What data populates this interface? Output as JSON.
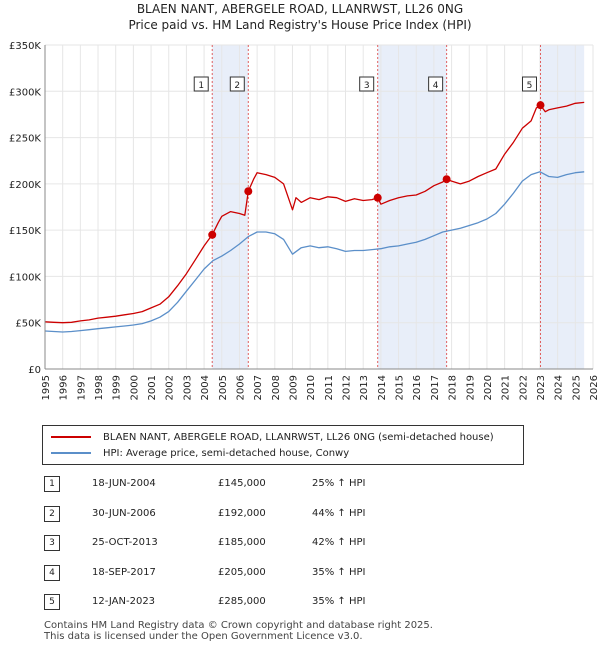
{
  "title_line1": "BLAEN NANT, ABERGELE ROAD, LLANRWST, LL26 0NG",
  "title_line2": "Price paid vs. HM Land Registry's House Price Index (HPI)",
  "chart_data": {
    "type": "line",
    "xlim": [
      1995,
      2026
    ],
    "ylim": [
      0,
      350000
    ],
    "x_ticks": [
      1995,
      1996,
      1997,
      1998,
      1999,
      2000,
      2001,
      2002,
      2003,
      2004,
      2005,
      2006,
      2007,
      2008,
      2009,
      2010,
      2011,
      2012,
      2013,
      2014,
      2015,
      2016,
      2017,
      2018,
      2019,
      2020,
      2021,
      2022,
      2023,
      2024,
      2025,
      2026
    ],
    "y_ticks": [
      {
        "value": 0,
        "label": "£0"
      },
      {
        "value": 50000,
        "label": "£50K"
      },
      {
        "value": 100000,
        "label": "£100K"
      },
      {
        "value": 150000,
        "label": "£150K"
      },
      {
        "value": 200000,
        "label": "£200K"
      },
      {
        "value": 250000,
        "label": "£250K"
      },
      {
        "value": 300000,
        "label": "£300K"
      },
      {
        "value": 350000,
        "label": "£350K"
      }
    ],
    "series": [
      {
        "name": "BLAEN NANT, ABERGELE ROAD, LLANRWST, LL26 0NG (semi-detached house)",
        "color": "#cc0000",
        "x": [
          1995,
          1995.5,
          1996,
          1996.5,
          1997,
          1997.5,
          1998,
          1998.5,
          1999,
          1999.5,
          2000,
          2000.5,
          2001,
          2001.5,
          2002,
          2002.5,
          2003,
          2003.5,
          2004,
          2004.46,
          2004.8,
          2005,
          2005.5,
          2006,
          2006.3,
          2006.5,
          2006.8,
          2007,
          2007.5,
          2008,
          2008.5,
          2009,
          2009.2,
          2009.5,
          2010,
          2010.5,
          2011,
          2011.5,
          2012,
          2012.5,
          2013,
          2013.5,
          2013.82,
          2014,
          2014.5,
          2015,
          2015.5,
          2016,
          2016.5,
          2017,
          2017.5,
          2017.72,
          2018,
          2018.5,
          2019,
          2019.5,
          2020,
          2020.5,
          2021,
          2021.5,
          2022,
          2022.5,
          2022.8,
          2023.03,
          2023.3,
          2023.5,
          2024,
          2024.5,
          2025,
          2025.5
        ],
        "y": [
          51000,
          50500,
          50000,
          50500,
          52000,
          53000,
          55000,
          56000,
          57000,
          58500,
          60000,
          62000,
          66000,
          70000,
          78000,
          90000,
          103000,
          118000,
          133000,
          145000,
          158000,
          165000,
          170000,
          168000,
          166000,
          192000,
          205000,
          212000,
          210000,
          207000,
          200000,
          172000,
          185000,
          180000,
          185000,
          183000,
          186000,
          185000,
          181000,
          184000,
          182000,
          183000,
          185000,
          178000,
          182000,
          185000,
          187000,
          188000,
          192000,
          198000,
          202000,
          205000,
          203000,
          200000,
          203000,
          208000,
          212000,
          216000,
          232000,
          245000,
          260000,
          268000,
          282000,
          285000,
          278000,
          280000,
          282000,
          284000,
          287000,
          288000
        ]
      },
      {
        "name": "HPI: Average price, semi-detached house, Conwy",
        "color": "#5b8fc9",
        "x": [
          1995,
          1995.5,
          1996,
          1996.5,
          1997,
          1997.5,
          1998,
          1998.5,
          1999,
          1999.5,
          2000,
          2000.5,
          2001,
          2001.5,
          2002,
          2002.5,
          2003,
          2003.5,
          2004,
          2004.5,
          2005,
          2005.5,
          2006,
          2006.5,
          2007,
          2007.5,
          2008,
          2008.5,
          2009,
          2009.5,
          2010,
          2010.5,
          2011,
          2011.5,
          2012,
          2012.5,
          2013,
          2013.5,
          2014,
          2014.5,
          2015,
          2015.5,
          2016,
          2016.5,
          2017,
          2017.5,
          2018,
          2018.5,
          2019,
          2019.5,
          2020,
          2020.5,
          2021,
          2021.5,
          2022,
          2022.5,
          2023,
          2023.5,
          2024,
          2024.5,
          2025,
          2025.5
        ],
        "y": [
          41000,
          40500,
          40000,
          40500,
          41500,
          42500,
          43500,
          44500,
          45500,
          46500,
          47500,
          49000,
          52000,
          56000,
          62000,
          72000,
          84000,
          96000,
          108000,
          117000,
          122000,
          128000,
          135000,
          143000,
          148000,
          148000,
          146000,
          140000,
          124000,
          131000,
          133000,
          131000,
          132000,
          130000,
          127000,
          128000,
          128000,
          129000,
          130000,
          132000,
          133000,
          135000,
          137000,
          140000,
          144000,
          148000,
          150000,
          152000,
          155000,
          158000,
          162000,
          168000,
          178000,
          190000,
          203000,
          210000,
          213000,
          208000,
          207000,
          210000,
          212000,
          213000
        ]
      }
    ],
    "sales": [
      {
        "id": "1",
        "x": 2004.46,
        "price": 145000,
        "date": "18-JUN-2004",
        "price_label": "£145,000",
        "hpi": "25% ↑ HPI"
      },
      {
        "id": "2",
        "x": 2006.5,
        "price": 192000,
        "date": "30-JUN-2006",
        "price_label": "£192,000",
        "hpi": "44% ↑ HPI"
      },
      {
        "id": "3",
        "x": 2013.82,
        "price": 185000,
        "date": "25-OCT-2013",
        "price_label": "£185,000",
        "hpi": "42% ↑ HPI"
      },
      {
        "id": "4",
        "x": 2017.72,
        "price": 205000,
        "date": "18-SEP-2017",
        "price_label": "£205,000",
        "hpi": "35% ↑ HPI"
      },
      {
        "id": "5",
        "x": 2023.03,
        "price": 285000,
        "date": "12-JAN-2023",
        "price_label": "£285,000",
        "hpi": "35% ↑ HPI"
      }
    ],
    "shaded_spans": [
      [
        2004.46,
        2006.5
      ],
      [
        2013.82,
        2017.72
      ],
      [
        2023.03,
        2025.5
      ]
    ]
  },
  "legend": {
    "property_label": "BLAEN NANT, ABERGELE ROAD, LLANRWST, LL26 0NG (semi-detached house)",
    "hpi_label": "HPI: Average price, semi-detached house, Conwy",
    "property_color": "#cc0000",
    "hpi_color": "#5b8fc9"
  },
  "footer_line1": "Contains HM Land Registry data © Crown copyright and database right 2025.",
  "footer_line2": "This data is licensed under the Open Government Licence v3.0."
}
